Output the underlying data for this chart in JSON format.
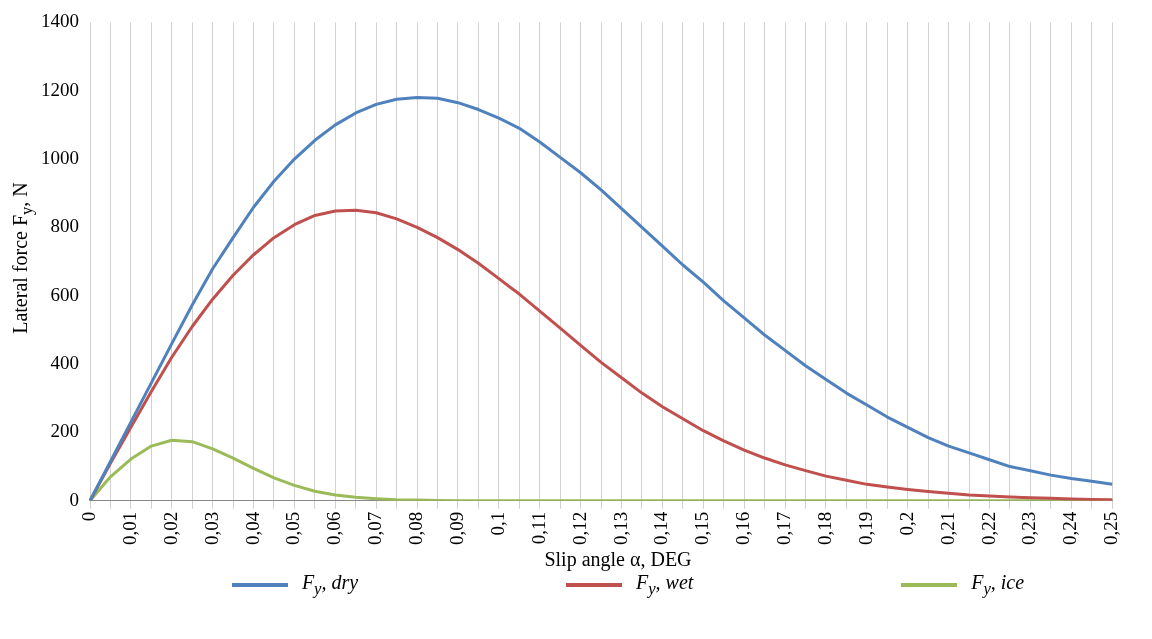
{
  "chart_data": {
    "type": "line",
    "xlabel": "Slip angle α, DEG",
    "ylabel": "Lateral force F$_{y}$, N",
    "categories": [
      "0",
      null,
      "0,01",
      null,
      "0,02",
      null,
      "0,03",
      null,
      "0,04",
      null,
      "0,05",
      null,
      "0,06",
      null,
      "0,07",
      null,
      "0,08",
      null,
      "0,09",
      null,
      "0,1",
      null,
      "0,11",
      null,
      "0,12",
      null,
      "0,13",
      null,
      "0,14",
      null,
      "0,15",
      null,
      "0,16",
      null,
      "0,17",
      null,
      "0,18",
      null,
      "0,19",
      null,
      "0,2",
      null,
      "0,21",
      null,
      "0,22",
      null,
      "0,23",
      null,
      "0,24",
      null,
      "0,25"
    ],
    "series": [
      {
        "name": "F$_{y}$, dry",
        "color": "#4f81bd",
        "values": [
          0,
          115,
          230,
          345,
          460,
          573,
          679,
          770,
          859,
          935,
          1000,
          1055,
          1100,
          1135,
          1160,
          1175,
          1180,
          1178,
          1165,
          1145,
          1120,
          1090,
          1050,
          1005,
          960,
          910,
          855,
          800,
          745,
          690,
          640,
          585,
          535,
          485,
          440,
          395,
          355,
          315,
          280,
          245,
          215,
          185,
          160,
          140,
          120,
          100,
          88,
          75,
          65,
          57,
          48
        ]
      },
      {
        "name": "F$_{y}$, wet",
        "color": "#c0504d",
        "values": [
          0,
          110,
          215,
          320,
          420,
          510,
          590,
          660,
          720,
          770,
          808,
          835,
          848,
          850,
          843,
          825,
          800,
          770,
          735,
          695,
          650,
          605,
          555,
          505,
          455,
          405,
          360,
          315,
          275,
          240,
          205,
          175,
          148,
          125,
          105,
          88,
          72,
          60,
          48,
          40,
          33,
          27,
          22,
          17,
          14,
          11,
          9,
          7,
          5,
          4,
          3
        ]
      },
      {
        "name": "F$_{y}$, ice",
        "color": "#9bbb59",
        "values": [
          0,
          70,
          122,
          160,
          177,
          173,
          152,
          125,
          95,
          67,
          45,
          28,
          17,
          10,
          6,
          3,
          2,
          1,
          0,
          0,
          0,
          0,
          0,
          0,
          0,
          0,
          0,
          0,
          0,
          0,
          0,
          0,
          0,
          0,
          0,
          0,
          0,
          0,
          0,
          0,
          0,
          0,
          0,
          0,
          0,
          0,
          0,
          0,
          0,
          0,
          0
        ]
      }
    ],
    "ylim": [
      0,
      1400
    ],
    "yticks": [
      0,
      200,
      400,
      600,
      800,
      1000,
      1200,
      1400
    ],
    "grid": "x",
    "legend": "bottom",
    "marker": "none",
    "line_style": "solid"
  }
}
